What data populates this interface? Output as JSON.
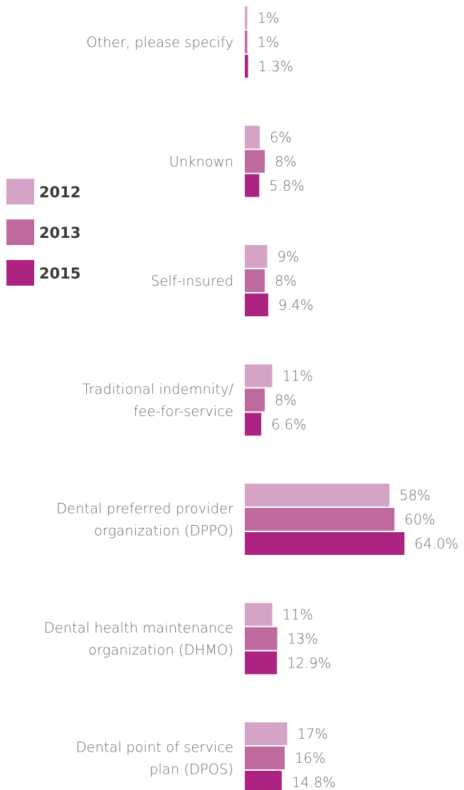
{
  "chart_data": {
    "type": "bar",
    "orientation": "horizontal",
    "title": "",
    "xlabel": "",
    "ylabel": "",
    "grid": false,
    "legend_position": "left",
    "categories": [
      [
        "Other, please specify"
      ],
      [
        "Unknown"
      ],
      [
        "Self-insured"
      ],
      [
        "Traditional indemnity/",
        "fee-for-service"
      ],
      [
        "Dental preferred provider",
        "organization (DPPO)"
      ],
      [
        "Dental health maintenance",
        "organization (DHMO)"
      ],
      [
        "Dental point of service",
        "plan (DPOS)"
      ]
    ],
    "series": [
      {
        "name": "2012",
        "color": "#d4a3c6",
        "values": [
          1,
          6,
          9,
          11,
          58,
          11,
          17
        ],
        "labels": [
          "1%",
          "6%",
          "9%",
          "11%",
          "58%",
          "11%",
          "17%"
        ]
      },
      {
        "name": "2013",
        "color": "#bf6a9f",
        "values": [
          1,
          8,
          8,
          8,
          60,
          13,
          16
        ],
        "labels": [
          "1%",
          "8%",
          "8%",
          "8%",
          "60%",
          "13%",
          "16%"
        ]
      },
      {
        "name": "2015",
        "color": "#ad2382",
        "values": [
          1.3,
          5.8,
          9.4,
          6.6,
          64.0,
          12.9,
          14.8
        ],
        "labels": [
          "1.3%",
          "5.8%",
          "9.4%",
          "6.6%",
          "64.0%",
          "12.9%",
          "14.8%"
        ]
      }
    ]
  }
}
